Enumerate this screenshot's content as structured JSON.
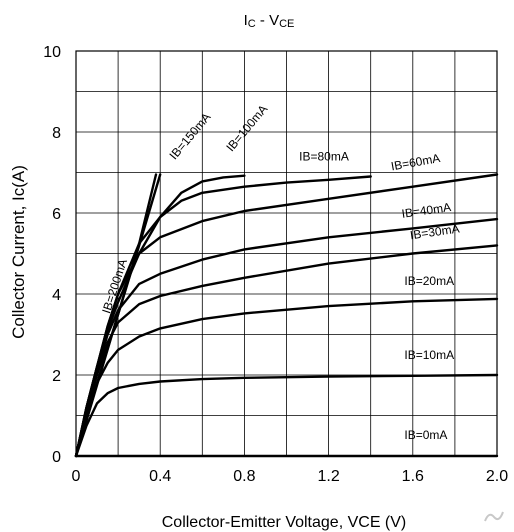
{
  "chart_data": {
    "type": "line",
    "title": {
      "main": "I",
      "main_sub": "C",
      "sep": " - V",
      "sep_sub": "CE"
    },
    "xlabel": "Collector-Emitter Voltage, VCE (V)",
    "ylabel": "Collector Current, Ic(A)",
    "xlim": [
      0,
      2.0
    ],
    "ylim": [
      0,
      10
    ],
    "grid": true,
    "xticks": [
      0,
      0.4,
      0.8,
      1.2,
      1.6,
      2.0
    ],
    "xtick_labels": [
      "0",
      "0.4",
      "0.8",
      "1.2",
      "1.6",
      "2.0"
    ],
    "yticks": [
      0,
      2,
      4,
      6,
      8,
      10
    ],
    "ytick_labels": [
      "0",
      "2",
      "4",
      "6",
      "8",
      "10"
    ],
    "line_color": "#000000",
    "series": [
      {
        "name": "IB=0mA",
        "points": [
          [
            0,
            0
          ],
          [
            2.0,
            0
          ]
        ]
      },
      {
        "name": "IB=10mA",
        "points": [
          [
            0,
            0
          ],
          [
            0.05,
            0.75
          ],
          [
            0.1,
            1.3
          ],
          [
            0.15,
            1.55
          ],
          [
            0.2,
            1.68
          ],
          [
            0.3,
            1.78
          ],
          [
            0.4,
            1.84
          ],
          [
            0.6,
            1.9
          ],
          [
            0.8,
            1.93
          ],
          [
            1.2,
            1.96
          ],
          [
            1.6,
            1.98
          ],
          [
            2.0,
            2.0
          ]
        ]
      },
      {
        "name": "IB=20mA",
        "points": [
          [
            0,
            0
          ],
          [
            0.05,
            1.0
          ],
          [
            0.1,
            1.8
          ],
          [
            0.15,
            2.3
          ],
          [
            0.2,
            2.62
          ],
          [
            0.3,
            2.95
          ],
          [
            0.4,
            3.15
          ],
          [
            0.6,
            3.38
          ],
          [
            0.8,
            3.52
          ],
          [
            1.2,
            3.7
          ],
          [
            1.6,
            3.82
          ],
          [
            2.0,
            3.88
          ]
        ]
      },
      {
        "name": "IB=30mA",
        "points": [
          [
            0,
            0
          ],
          [
            0.05,
            1.1
          ],
          [
            0.1,
            2.0
          ],
          [
            0.15,
            2.8
          ],
          [
            0.2,
            3.3
          ],
          [
            0.3,
            3.75
          ],
          [
            0.4,
            3.95
          ],
          [
            0.6,
            4.2
          ],
          [
            0.8,
            4.4
          ],
          [
            1.2,
            4.75
          ],
          [
            1.6,
            5.0
          ],
          [
            2.0,
            5.2
          ]
        ]
      },
      {
        "name": "IB=40mA",
        "points": [
          [
            0,
            0
          ],
          [
            0.05,
            1.15
          ],
          [
            0.1,
            2.1
          ],
          [
            0.15,
            3.0
          ],
          [
            0.2,
            3.6
          ],
          [
            0.3,
            4.25
          ],
          [
            0.4,
            4.5
          ],
          [
            0.6,
            4.85
          ],
          [
            0.8,
            5.1
          ],
          [
            1.2,
            5.4
          ],
          [
            1.6,
            5.62
          ],
          [
            2.0,
            5.85
          ]
        ]
      },
      {
        "name": "IB=60mA",
        "points": [
          [
            0,
            0
          ],
          [
            0.05,
            1.2
          ],
          [
            0.1,
            2.2
          ],
          [
            0.15,
            3.2
          ],
          [
            0.2,
            4.0
          ],
          [
            0.3,
            5.0
          ],
          [
            0.4,
            5.4
          ],
          [
            0.6,
            5.8
          ],
          [
            0.8,
            6.05
          ],
          [
            1.2,
            6.35
          ],
          [
            1.6,
            6.65
          ],
          [
            2.0,
            6.95
          ]
        ]
      },
      {
        "name": "IB=80mA",
        "points": [
          [
            0,
            0
          ],
          [
            0.05,
            1.2
          ],
          [
            0.1,
            2.2
          ],
          [
            0.15,
            3.2
          ],
          [
            0.2,
            4.0
          ],
          [
            0.3,
            5.25
          ],
          [
            0.4,
            5.9
          ],
          [
            0.5,
            6.3
          ],
          [
            0.6,
            6.5
          ],
          [
            0.8,
            6.65
          ],
          [
            1.0,
            6.75
          ],
          [
            1.2,
            6.82
          ],
          [
            1.4,
            6.9
          ]
        ]
      },
      {
        "name": "IB=100mA",
        "points": [
          [
            0,
            0
          ],
          [
            0.05,
            1.2
          ],
          [
            0.1,
            2.2
          ],
          [
            0.15,
            3.1
          ],
          [
            0.2,
            3.8
          ],
          [
            0.3,
            5.0
          ],
          [
            0.4,
            5.9
          ],
          [
            0.5,
            6.5
          ],
          [
            0.6,
            6.78
          ],
          [
            0.7,
            6.88
          ],
          [
            0.8,
            6.92
          ]
        ]
      },
      {
        "name": "IB=150mA",
        "points": [
          [
            0,
            0
          ],
          [
            0.1,
            1.8
          ],
          [
            0.2,
            3.5
          ],
          [
            0.3,
            5.2
          ],
          [
            0.4,
            6.95
          ]
        ]
      },
      {
        "name": "IB=200mA",
        "points": [
          [
            0,
            0
          ],
          [
            0.1,
            1.75
          ],
          [
            0.2,
            3.5
          ],
          [
            0.3,
            5.25
          ],
          [
            0.38,
            6.95
          ]
        ]
      }
    ],
    "labels": [
      {
        "text": "IB=0mA",
        "x": 1.56,
        "y": 0.42,
        "rotate": 0
      },
      {
        "text": "IB=10mA",
        "x": 1.56,
        "y": 2.4,
        "rotate": 0
      },
      {
        "text": "IB=20mA",
        "x": 1.56,
        "y": 4.22,
        "rotate": 0
      },
      {
        "text": "IB=30mA",
        "x": 1.59,
        "y": 5.35,
        "rotate": -8
      },
      {
        "text": "IB=40mA",
        "x": 1.55,
        "y": 5.88,
        "rotate": -8
      },
      {
        "text": "IB=60mA",
        "x": 1.5,
        "y": 7.05,
        "rotate": -10
      },
      {
        "text": "IB=80mA",
        "x": 1.06,
        "y": 7.3,
        "rotate": 0
      },
      {
        "text": "IB=100mA",
        "x": 0.74,
        "y": 7.5,
        "rotate": -50
      },
      {
        "text": "IB=150mA",
        "x": 0.47,
        "y": 7.3,
        "rotate": -50
      },
      {
        "text": "IB=200mA",
        "x": 0.16,
        "y": 3.5,
        "rotate": -72
      }
    ]
  },
  "watermark": {
    "glyph": "♪"
  }
}
